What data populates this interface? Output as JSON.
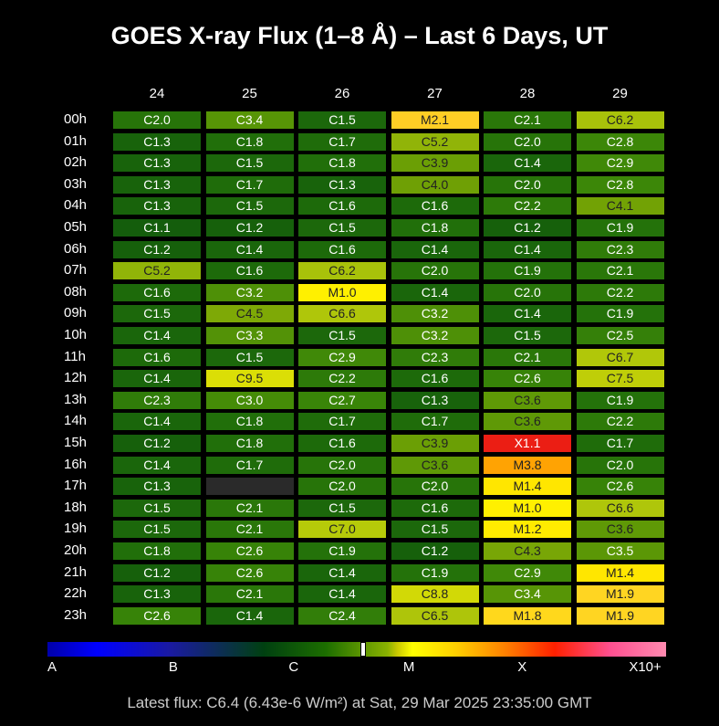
{
  "chart_data": {
    "type": "heatmap",
    "title": "GOES X-ray Flux (1–8 Å) – Last 6 Days, UT",
    "columns": [
      "24",
      "25",
      "26",
      "27",
      "28",
      "29"
    ],
    "rows": [
      "00h",
      "01h",
      "02h",
      "03h",
      "04h",
      "05h",
      "06h",
      "07h",
      "08h",
      "09h",
      "10h",
      "11h",
      "12h",
      "13h",
      "14h",
      "15h",
      "16h",
      "17h",
      "18h",
      "19h",
      "20h",
      "21h",
      "22h",
      "23h"
    ],
    "values": [
      [
        "C2.0",
        "C3.4",
        "C1.5",
        "M2.1",
        "C2.1",
        "C6.2"
      ],
      [
        "C1.3",
        "C1.8",
        "C1.7",
        "C5.2",
        "C2.0",
        "C2.8"
      ],
      [
        "C1.3",
        "C1.5",
        "C1.8",
        "C3.9",
        "C1.4",
        "C2.9"
      ],
      [
        "C1.3",
        "C1.7",
        "C1.3",
        "C4.0",
        "C2.0",
        "C2.8"
      ],
      [
        "C1.3",
        "C1.5",
        "C1.6",
        "C1.6",
        "C2.2",
        "C4.1"
      ],
      [
        "C1.1",
        "C1.2",
        "C1.5",
        "C1.8",
        "C1.2",
        "C1.9"
      ],
      [
        "C1.2",
        "C1.4",
        "C1.6",
        "C1.4",
        "C1.4",
        "C2.3"
      ],
      [
        "C5.2",
        "C1.6",
        "C6.2",
        "C2.0",
        "C1.9",
        "C2.1"
      ],
      [
        "C1.6",
        "C3.2",
        "M1.0",
        "C1.4",
        "C2.0",
        "C2.2"
      ],
      [
        "C1.5",
        "C4.5",
        "C6.6",
        "C3.2",
        "C1.4",
        "C1.9"
      ],
      [
        "C1.4",
        "C3.3",
        "C1.5",
        "C3.2",
        "C1.5",
        "C2.5"
      ],
      [
        "C1.6",
        "C1.5",
        "C2.9",
        "C2.3",
        "C2.1",
        "C6.7"
      ],
      [
        "C1.4",
        "C9.5",
        "C2.2",
        "C1.6",
        "C2.6",
        "C7.5"
      ],
      [
        "C2.3",
        "C3.0",
        "C2.7",
        "C1.3",
        "C3.6",
        "C1.9"
      ],
      [
        "C1.4",
        "C1.8",
        "C1.7",
        "C1.7",
        "C3.6",
        "C2.2"
      ],
      [
        "C1.2",
        "C1.8",
        "C1.6",
        "C3.9",
        "X1.1",
        "C1.7"
      ],
      [
        "C1.4",
        "C1.7",
        "C2.0",
        "C3.6",
        "M3.8",
        "C2.0"
      ],
      [
        "C1.3",
        "",
        "C2.0",
        "C2.0",
        "M1.4",
        "C2.6"
      ],
      [
        "C1.5",
        "C2.1",
        "C1.5",
        "C1.6",
        "M1.0",
        "C6.6"
      ],
      [
        "C1.5",
        "C2.1",
        "C7.0",
        "C1.5",
        "M1.2",
        "C3.6"
      ],
      [
        "C1.8",
        "C2.6",
        "C1.9",
        "C1.2",
        "C4.3",
        "C3.5"
      ],
      [
        "C1.2",
        "C2.6",
        "C1.4",
        "C1.9",
        "C2.9",
        "M1.4"
      ],
      [
        "C1.3",
        "C2.1",
        "C1.4",
        "C8.8",
        "C3.4",
        "M1.9"
      ],
      [
        "C2.6",
        "C1.4",
        "C2.4",
        "C6.5",
        "M1.8",
        "M1.9"
      ]
    ],
    "colorbar": {
      "ticks": [
        "A",
        "B",
        "C",
        "M",
        "X",
        "X10+"
      ],
      "current_marker_class": "C6.4"
    },
    "missing_color": "#2a2a2a"
  },
  "footer": {
    "text": "Latest flux: C6.4 (6.43e-6 W/m²) at Sat, 29 Mar 2025 23:35:00 GMT"
  }
}
